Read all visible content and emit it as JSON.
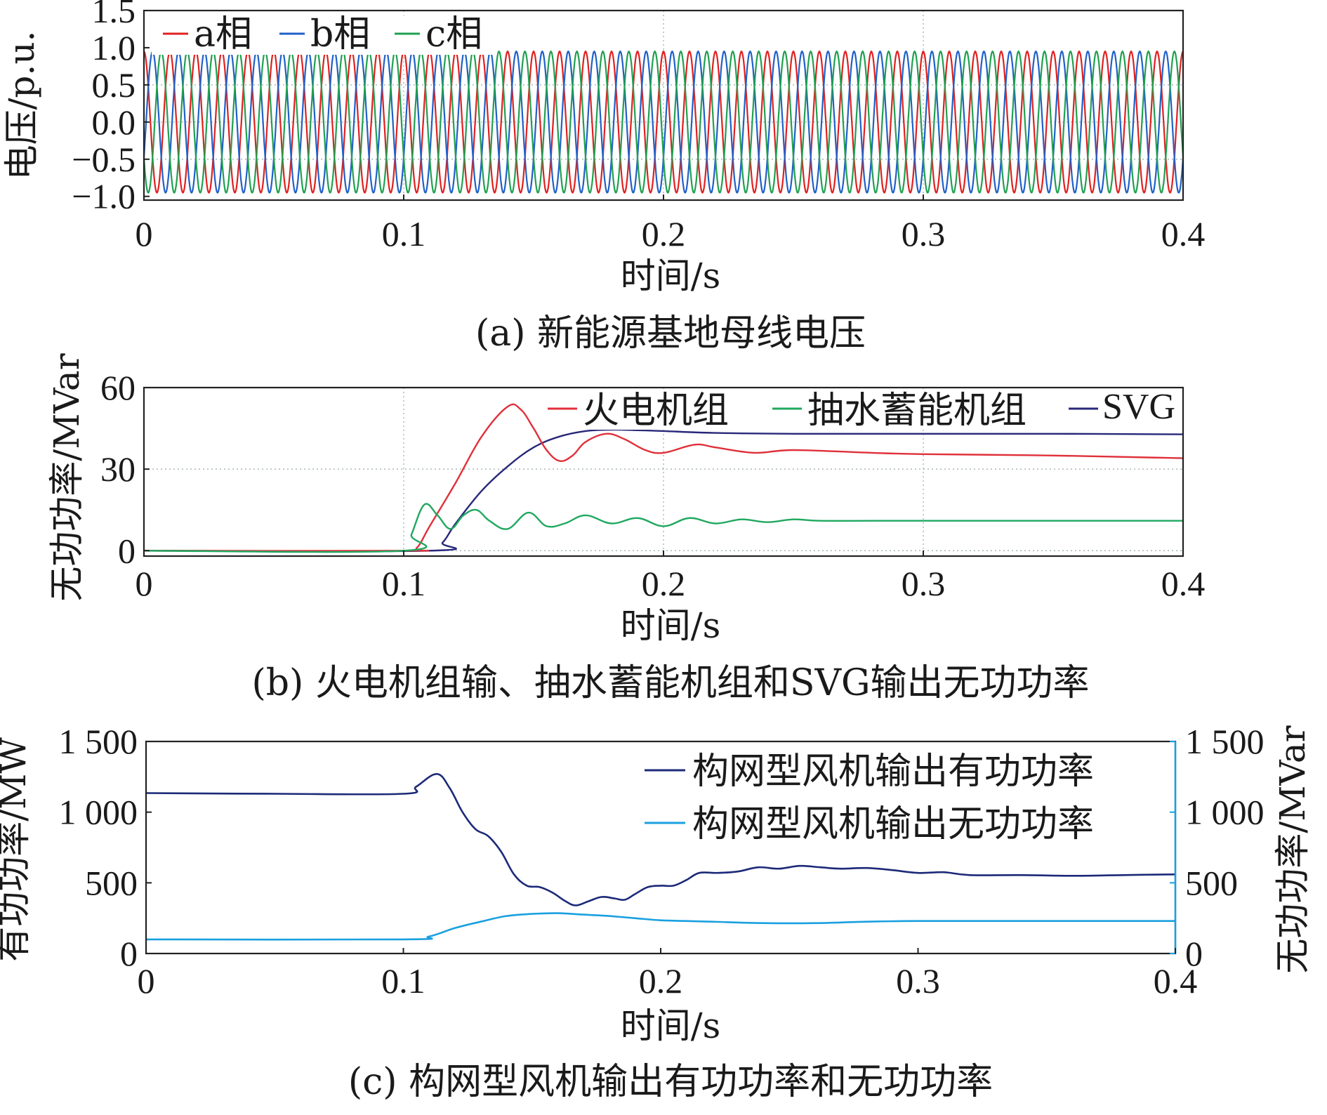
{
  "chart_data": [
    {
      "id": "a",
      "type": "line",
      "caption": "(a) 新能源基地母线电压",
      "xlabel": "时间/s",
      "ylabel": "电压/p.u.",
      "xlim": [
        0,
        0.4
      ],
      "ylim": [
        -1.05,
        1.5
      ],
      "xticks": [
        "0",
        "0.1",
        "0.2",
        "0.3",
        "0.4"
      ],
      "yticks": [
        "1.5",
        "1.0",
        "0.5",
        "0.0",
        "−0.5",
        "−1.0"
      ],
      "ytick_values": [
        1.5,
        1.0,
        0.5,
        0.0,
        -0.5,
        -1.0
      ],
      "grid": true,
      "legend_position": "top-left",
      "frequency_hz": 100,
      "amplitude": 0.95,
      "series": [
        {
          "name": "a相",
          "color": "#e02020",
          "phase_deg": 90
        },
        {
          "name": "b相",
          "color": "#2060c8",
          "phase_deg": -30
        },
        {
          "name": "c相",
          "color": "#20a050",
          "phase_deg": 210
        }
      ]
    },
    {
      "id": "b",
      "type": "line",
      "caption": "(b) 火电机组输、抽水蓄能机组和SVG输出无功功率",
      "xlabel": "时间/s",
      "ylabel": "无功功率/MVar",
      "xlim": [
        0,
        0.4
      ],
      "ylim": [
        -2,
        60
      ],
      "xticks": [
        "0",
        "0.1",
        "0.2",
        "0.3",
        "0.4"
      ],
      "yticks": [
        "60",
        "30",
        "0"
      ],
      "ytick_values": [
        60,
        30,
        0
      ],
      "grid": true,
      "legend_position": "top-right",
      "series": [
        {
          "name": "火电机组",
          "color": "#e0303a",
          "x": [
            0,
            0.1,
            0.105,
            0.11,
            0.12,
            0.13,
            0.14,
            0.145,
            0.15,
            0.155,
            0.16,
            0.165,
            0.17,
            0.178,
            0.185,
            0.193,
            0.2,
            0.212,
            0.22,
            0.235,
            0.25,
            0.28,
            0.3,
            0.35,
            0.4
          ],
          "y": [
            0,
            0,
            1,
            9,
            25,
            42,
            53,
            52,
            45,
            37,
            33,
            35,
            40,
            43,
            41,
            37,
            36,
            39,
            38,
            36,
            37,
            36,
            35.5,
            35,
            34
          ]
        },
        {
          "name": "抽水蓄能机组",
          "color": "#20a860",
          "x": [
            0,
            0.1,
            0.103,
            0.108,
            0.113,
            0.118,
            0.123,
            0.128,
            0.133,
            0.14,
            0.148,
            0.155,
            0.162,
            0.17,
            0.18,
            0.19,
            0.2,
            0.21,
            0.22,
            0.23,
            0.24,
            0.25,
            0.26,
            0.28,
            0.3,
            0.35,
            0.4
          ],
          "y": [
            0,
            0,
            6,
            17,
            13,
            8,
            13,
            15,
            11,
            8,
            14,
            9,
            10,
            13,
            10,
            12,
            9,
            12,
            10,
            11.5,
            10.5,
            11.5,
            11,
            11,
            11,
            11,
            11
          ]
        },
        {
          "name": "SVG",
          "color": "#28287a",
          "x": [
            0,
            0.11,
            0.115,
            0.12,
            0.13,
            0.14,
            0.15,
            0.16,
            0.17,
            0.18,
            0.19,
            0.2,
            0.22,
            0.25,
            0.3,
            0.35,
            0.4
          ],
          "y": [
            0,
            0,
            3,
            10,
            22,
            31,
            38,
            42,
            44,
            44.5,
            44.3,
            44,
            43.3,
            43,
            43,
            43,
            42.8
          ]
        }
      ]
    },
    {
      "id": "c",
      "type": "line",
      "caption": "(c) 构网型风机输出有功功率和无功功率",
      "xlabel": "时间/s",
      "ylabel": "有功功率/MW",
      "ylabel_right": "无功功率/MVar",
      "xlim": [
        0,
        0.4
      ],
      "ylim": [
        0,
        1500
      ],
      "xticks": [
        "0",
        "0.1",
        "0.2",
        "0.3",
        "0.4"
      ],
      "yticks": [
        "1 500",
        "1 000",
        "500",
        "0"
      ],
      "ytick_values": [
        1500,
        1000,
        500,
        0
      ],
      "yticks_right": [
        "1 500",
        "1 000",
        "500",
        "0"
      ],
      "grid": false,
      "legend_position": "top-right",
      "series": [
        {
          "name": "构网型风机输出有功功率",
          "color": "#1c2a78",
          "x": [
            0,
            0.05,
            0.1,
            0.105,
            0.113,
            0.118,
            0.123,
            0.128,
            0.133,
            0.138,
            0.143,
            0.148,
            0.153,
            0.158,
            0.163,
            0.167,
            0.172,
            0.177,
            0.182,
            0.186,
            0.19,
            0.195,
            0.2,
            0.205,
            0.21,
            0.215,
            0.222,
            0.23,
            0.238,
            0.246,
            0.254,
            0.262,
            0.27,
            0.28,
            0.29,
            0.3,
            0.31,
            0.32,
            0.34,
            0.36,
            0.38,
            0.4
          ],
          "y": [
            1135,
            1130,
            1130,
            1180,
            1270,
            1170,
            1000,
            880,
            830,
            720,
            560,
            480,
            470,
            430,
            370,
            340,
            370,
            400,
            390,
            380,
            420,
            470,
            480,
            480,
            520,
            570,
            570,
            580,
            610,
            600,
            620,
            610,
            600,
            605,
            590,
            570,
            575,
            555,
            555,
            550,
            555,
            560
          ]
        },
        {
          "name": "构网型风机输出无功功率",
          "color": "#1aa0e0",
          "x": [
            0,
            0.1,
            0.11,
            0.12,
            0.13,
            0.14,
            0.15,
            0.16,
            0.17,
            0.18,
            0.19,
            0.2,
            0.21,
            0.22,
            0.24,
            0.26,
            0.28,
            0.3,
            0.35,
            0.4
          ],
          "y": [
            100,
            100,
            120,
            180,
            225,
            265,
            280,
            285,
            275,
            265,
            250,
            235,
            230,
            225,
            215,
            215,
            225,
            230,
            230,
            230
          ]
        }
      ]
    }
  ]
}
